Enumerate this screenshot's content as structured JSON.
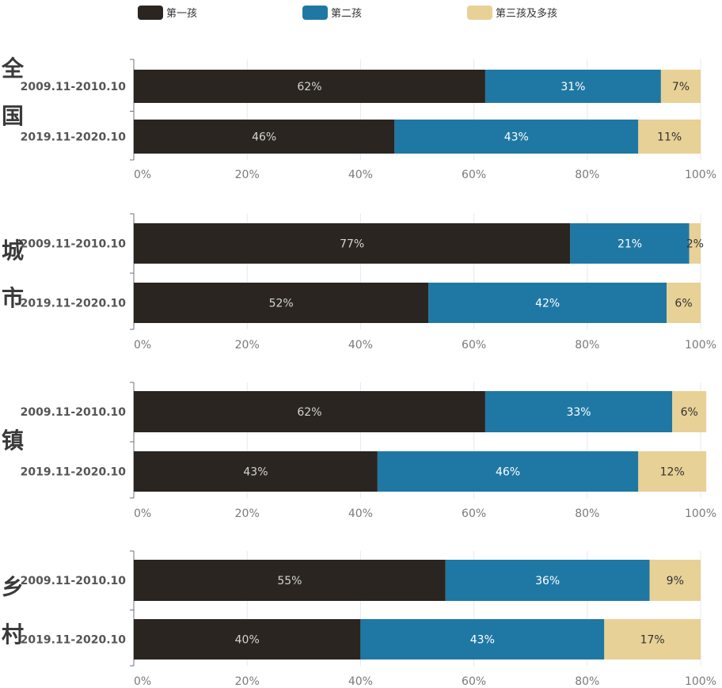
{
  "chart_data": {
    "type": "bar",
    "orientation": "horizontal",
    "stacked": true,
    "legend": {
      "position": "top",
      "items": [
        {
          "name": "第一孩",
          "color": "#2a2520"
        },
        {
          "name": "第二孩",
          "color": "#1f78a4"
        },
        {
          "name": "第三孩及多孩",
          "color": "#e8d196"
        }
      ]
    },
    "xlim": [
      0,
      100
    ],
    "xticks": [
      "0%",
      "20%",
      "40%",
      "60%",
      "80%",
      "100%"
    ],
    "grid": true,
    "panels": [
      {
        "region": "全国",
        "categories": [
          "2009.11-2010.10",
          "2019.11-2020.10"
        ],
        "series": [
          {
            "name": "第一孩",
            "values": [
              62,
              46
            ]
          },
          {
            "name": "第二孩",
            "values": [
              31,
              43
            ]
          },
          {
            "name": "第三孩及多孩",
            "values": [
              7,
              11
            ]
          }
        ]
      },
      {
        "region": "城市",
        "categories": [
          "2009.11-2010.10",
          "2019.11-2020.10"
        ],
        "series": [
          {
            "name": "第一孩",
            "values": [
              77,
              52
            ]
          },
          {
            "name": "第二孩",
            "values": [
              21,
              42
            ]
          },
          {
            "name": "第三孩及多孩",
            "values": [
              2,
              6
            ]
          }
        ]
      },
      {
        "region": "镇",
        "categories": [
          "2009.11-2010.10",
          "2019.11-2020.10"
        ],
        "series": [
          {
            "name": "第一孩",
            "values": [
              62,
              43
            ]
          },
          {
            "name": "第二孩",
            "values": [
              33,
              46
            ]
          },
          {
            "name": "第三孩及多孩",
            "values": [
              6,
              12
            ]
          }
        ]
      },
      {
        "region": "乡村",
        "categories": [
          "2009.11-2010.10",
          "2019.11-2020.10"
        ],
        "series": [
          {
            "name": "第一孩",
            "values": [
              55,
              40
            ]
          },
          {
            "name": "第二孩",
            "values": [
              36,
              43
            ]
          },
          {
            "name": "第三孩及多孩",
            "values": [
              9,
              17
            ]
          }
        ]
      }
    ]
  }
}
